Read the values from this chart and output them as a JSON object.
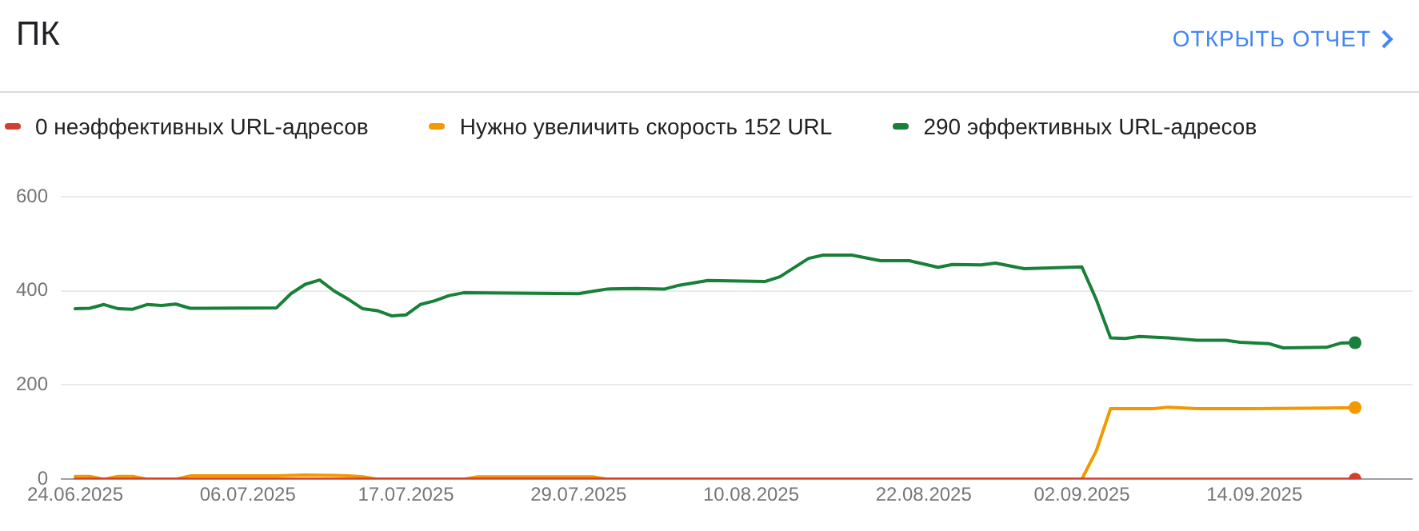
{
  "chart_data": {
    "type": "line",
    "title": "ПК",
    "annotations": [
      "ОТКРЫТЬ ОТЧЕТ"
    ],
    "legend": "top left",
    "grid": "y",
    "line_style": "solid",
    "xlim": [
      "2025-06-23",
      "2025-09-25"
    ],
    "xticks": [
      {
        "value": "2025-06-24",
        "label": "24.06.2025"
      },
      {
        "value": "2025-07-06",
        "label": "06.07.2025"
      },
      {
        "value": "2025-07-17",
        "label": "17.07.2025"
      },
      {
        "value": "2025-07-29",
        "label": "29.07.2025"
      },
      {
        "value": "2025-08-10",
        "label": "10.08.2025"
      },
      {
        "value": "2025-08-22",
        "label": "22.08.2025"
      },
      {
        "value": "2025-09-02",
        "label": "02.09.2025"
      },
      {
        "value": "2025-09-14",
        "label": "14.09.2025"
      }
    ],
    "ylim": [
      0,
      600
    ],
    "yticks": [
      0,
      200,
      400,
      600
    ],
    "series": [
      {
        "name": "0 неэффективных URL-адресов",
        "color": "#d23f31",
        "x": [
          "2025-06-24",
          "2025-09-21"
        ],
        "values": [
          0,
          0
        ]
      },
      {
        "name": "Нужно увеличить скорость 152 URL",
        "color": "#f29900",
        "x": [
          "2025-06-24",
          "2025-06-25",
          "2025-06-26",
          "2025-06-27",
          "2025-06-28",
          "2025-06-29",
          "2025-07-01",
          "2025-07-02",
          "2025-07-08",
          "2025-07-10",
          "2025-07-12",
          "2025-07-13",
          "2025-07-14",
          "2025-07-15",
          "2025-07-21",
          "2025-07-22",
          "2025-07-30",
          "2025-07-31",
          "2025-09-02",
          "2025-09-03",
          "2025-09-04",
          "2025-09-07",
          "2025-09-08",
          "2025-09-10",
          "2025-09-14",
          "2025-09-19",
          "2025-09-21"
        ],
        "values": [
          6,
          6,
          0,
          6,
          6,
          0,
          0,
          7,
          7,
          9,
          8,
          7,
          5,
          0,
          0,
          5,
          5,
          0,
          0,
          60,
          150,
          150,
          153,
          150,
          150,
          151,
          152
        ]
      },
      {
        "name": "290 эффективных URL-адресов",
        "color": "#188038",
        "x": [
          "2025-06-24",
          "2025-06-25",
          "2025-06-26",
          "2025-06-27",
          "2025-06-28",
          "2025-06-29",
          "2025-06-30",
          "2025-07-01",
          "2025-07-02",
          "2025-07-08",
          "2025-07-09",
          "2025-07-10",
          "2025-07-11",
          "2025-07-12",
          "2025-07-13",
          "2025-07-14",
          "2025-07-15",
          "2025-07-16",
          "2025-07-17",
          "2025-07-18",
          "2025-07-19",
          "2025-07-20",
          "2025-07-21",
          "2025-07-29",
          "2025-07-30",
          "2025-07-31",
          "2025-08-02",
          "2025-08-04",
          "2025-08-05",
          "2025-08-07",
          "2025-08-11",
          "2025-08-12",
          "2025-08-14",
          "2025-08-15",
          "2025-08-17",
          "2025-08-19",
          "2025-08-21",
          "2025-08-23",
          "2025-08-24",
          "2025-08-26",
          "2025-08-27",
          "2025-08-29",
          "2025-09-02",
          "2025-09-03",
          "2025-09-04",
          "2025-09-05",
          "2025-09-06",
          "2025-09-08",
          "2025-09-10",
          "2025-09-12",
          "2025-09-13",
          "2025-09-15",
          "2025-09-16",
          "2025-09-19",
          "2025-09-20",
          "2025-09-21"
        ],
        "values": [
          362,
          363,
          371,
          362,
          361,
          371,
          369,
          372,
          363,
          364,
          394,
          414,
          423,
          400,
          382,
          362,
          358,
          347,
          349,
          371,
          379,
          390,
          396,
          394,
          399,
          404,
          405,
          404,
          412,
          422,
          420,
          430,
          469,
          476,
          476,
          464,
          464,
          450,
          456,
          455,
          459,
          447,
          451,
          382,
          300,
          299,
          303,
          300,
          295,
          295,
          291,
          288,
          279,
          280,
          289,
          290
        ]
      }
    ]
  }
}
